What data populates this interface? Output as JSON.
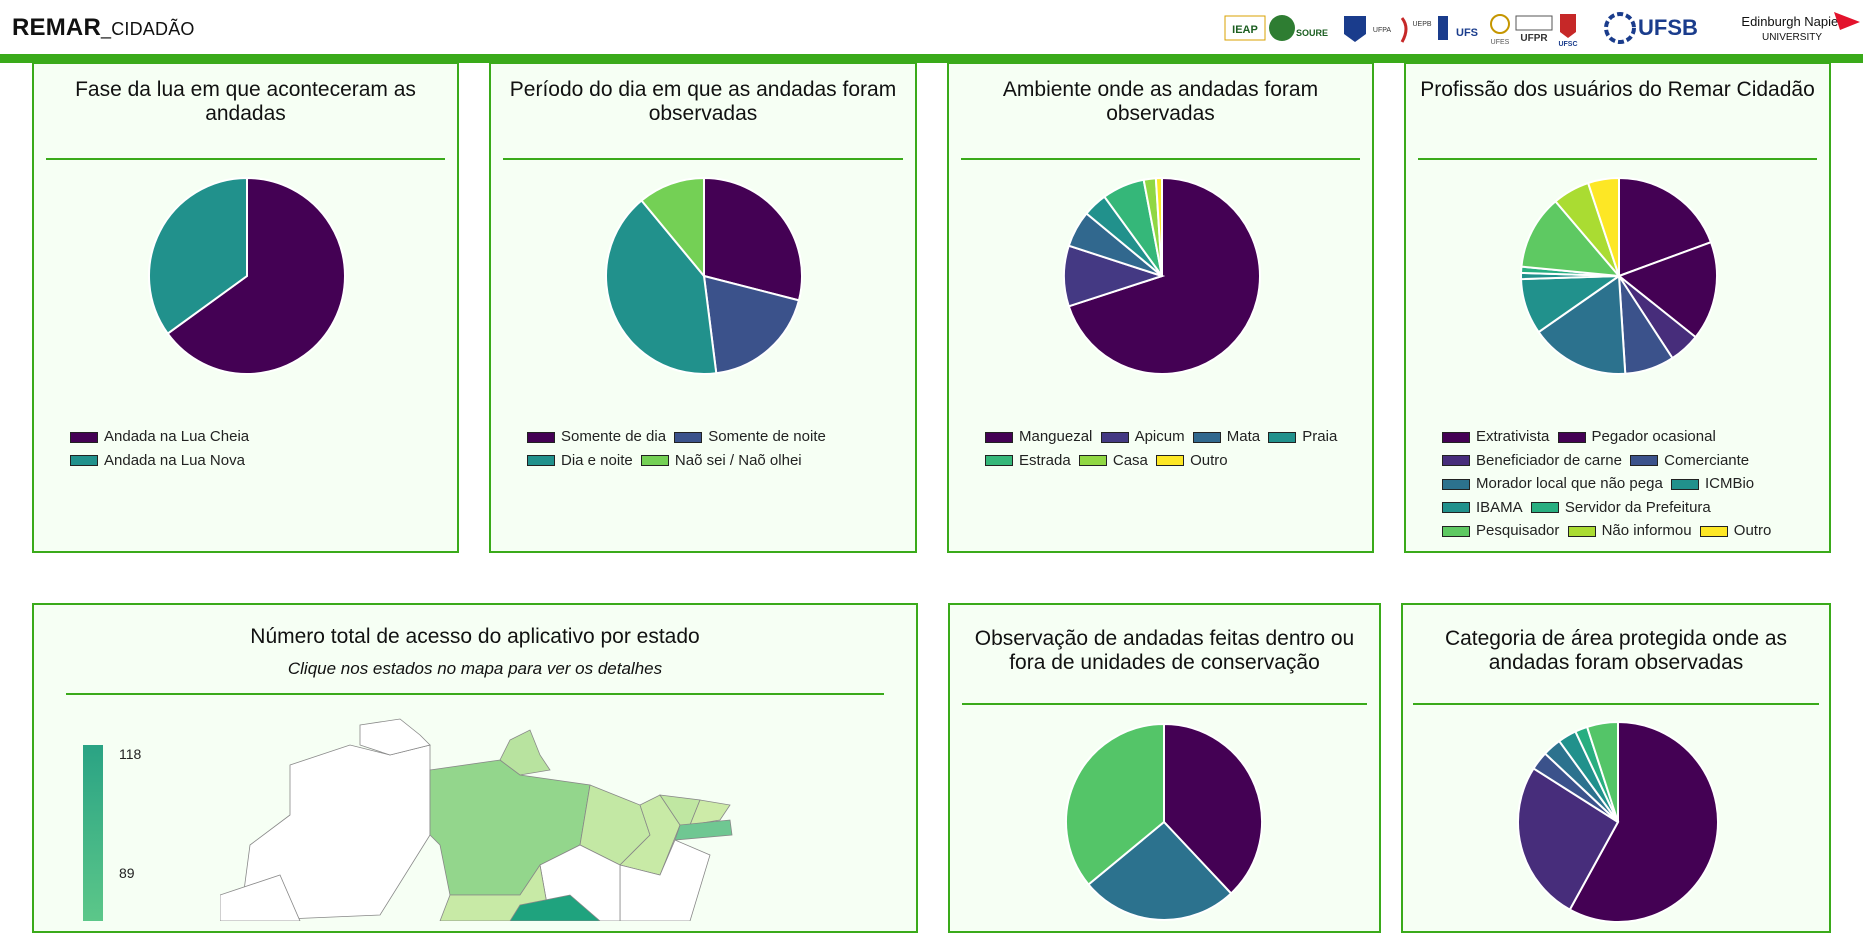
{
  "header": {
    "brand_main": "REMAR",
    "brand_sub": "_CIDADÃO",
    "logos": [
      {
        "name": "ieap-logo",
        "text": "IEAP"
      },
      {
        "name": "soure-logo",
        "text": "SOURE"
      },
      {
        "name": "ufpa-logo",
        "text": "UFPA"
      },
      {
        "name": "uepb-logo",
        "text": "UEPB"
      },
      {
        "name": "ufs-logo",
        "text": "UFS"
      },
      {
        "name": "ufes-logo",
        "text": "UFES"
      },
      {
        "name": "ufpr-logo",
        "text": "UFPR"
      },
      {
        "name": "ufsc-logo",
        "text": "UFSC"
      },
      {
        "name": "ufsb-logo",
        "text": "UFSB"
      },
      {
        "name": "napier-logo",
        "text": "Edinburgh Napier",
        "text2": "UNIVERSITY"
      }
    ]
  },
  "colors": {
    "accent_green": "#3aaa1a",
    "card_bg": "#f6fff4"
  },
  "cards": {
    "moon": {
      "title": "Fase da lua em que aconteceram as andadas",
      "legend": [
        {
          "label": "Andada na Lua Cheia",
          "color": "#440154"
        },
        {
          "label": "Andada na Lua Nova",
          "color": "#21918c"
        }
      ],
      "slices": [
        {
          "value": 65,
          "color": "#440154"
        },
        {
          "value": 35,
          "color": "#21918c"
        }
      ]
    },
    "period": {
      "title": "Período do dia em que as andadas foram observadas",
      "legend": [
        {
          "label": "Somente de dia",
          "color": "#440154"
        },
        {
          "label": "Somente de noite",
          "color": "#3b528b"
        },
        {
          "label": "Dia e noite",
          "color": "#21918c"
        },
        {
          "label": "Naõ sei / Naõ olhei",
          "color": "#74d055"
        }
      ],
      "slices": [
        {
          "value": 29,
          "color": "#440154"
        },
        {
          "value": 19,
          "color": "#3b528b"
        },
        {
          "value": 41,
          "color": "#21918c"
        },
        {
          "value": 11,
          "color": "#74d055"
        }
      ]
    },
    "environment": {
      "title": "Ambiente onde as andadas foram observadas",
      "legend": [
        {
          "label": "Manguezal",
          "color": "#440154"
        },
        {
          "label": "Apicum",
          "color": "#443983"
        },
        {
          "label": "Mata",
          "color": "#31688e"
        },
        {
          "label": "Praia",
          "color": "#21918c"
        },
        {
          "label": "Estrada",
          "color": "#35b779"
        },
        {
          "label": "Casa",
          "color": "#90d743"
        },
        {
          "label": "Outro",
          "color": "#fde725"
        }
      ],
      "slices": [
        {
          "value": 70,
          "color": "#440154"
        },
        {
          "value": 10,
          "color": "#443983"
        },
        {
          "value": 6,
          "color": "#31688e"
        },
        {
          "value": 4,
          "color": "#21918c"
        },
        {
          "value": 7,
          "color": "#35b779"
        },
        {
          "value": 2,
          "color": "#90d743"
        },
        {
          "value": 1,
          "color": "#fde725"
        }
      ]
    },
    "profession": {
      "title": "Profissão dos usuários do Remar Cidadão",
      "legend": [
        {
          "label": "Extrativista",
          "color": "#440154"
        },
        {
          "label": "Pegador ocasional",
          "color": "#440154"
        },
        {
          "label": "Beneficiador de carne",
          "color": "#472d7b"
        },
        {
          "label": "Comerciante",
          "color": "#3b528b"
        },
        {
          "label": "Morador local que não pega",
          "color": "#2c728e"
        },
        {
          "label": "ICMBio",
          "color": "#21918c"
        },
        {
          "label": "IBAMA",
          "color": "#21918c"
        },
        {
          "label": "Servidor da Prefeitura",
          "color": "#28ae80"
        },
        {
          "label": "Pesquisador",
          "color": "#5ec962"
        },
        {
          "label": "Não informou",
          "color": "#aadc32"
        },
        {
          "label": "Outro",
          "color": "#fde725"
        }
      ],
      "slices": [
        {
          "value": 19,
          "color": "#440154"
        },
        {
          "value": 16,
          "color": "#440154"
        },
        {
          "value": 5,
          "color": "#472d7b"
        },
        {
          "value": 8,
          "color": "#3b528b"
        },
        {
          "value": 16,
          "color": "#2c728e"
        },
        {
          "value": 9,
          "color": "#21918c"
        },
        {
          "value": 1,
          "color": "#21918c"
        },
        {
          "value": 1,
          "color": "#28ae80"
        },
        {
          "value": 12,
          "color": "#5ec962"
        },
        {
          "value": 6,
          "color": "#aadc32"
        },
        {
          "value": 5,
          "color": "#fde725"
        }
      ]
    },
    "access": {
      "title": "Número total de acesso do aplicativo por estado",
      "subtitle": "Clique nos estados no mapa para ver os detalhes",
      "scale_labels": [
        "118",
        "89"
      ]
    },
    "conservation": {
      "title": "Observação de andadas feitas dentro ou fora de unidades de conservação",
      "slices": [
        {
          "value": 38,
          "color": "#440154"
        },
        {
          "value": 26,
          "color": "#2c728e"
        },
        {
          "value": 36,
          "color": "#54c568"
        }
      ]
    },
    "protected": {
      "title": "Categoria de área protegida onde as andadas foram observadas",
      "slices": [
        {
          "value": 58,
          "color": "#440154"
        },
        {
          "value": 26,
          "color": "#472d7b"
        },
        {
          "value": 3,
          "color": "#3b528b"
        },
        {
          "value": 3,
          "color": "#2c728e"
        },
        {
          "value": 3,
          "color": "#21918c"
        },
        {
          "value": 2,
          "color": "#28ae80"
        },
        {
          "value": 5,
          "color": "#54c568"
        }
      ]
    }
  }
}
